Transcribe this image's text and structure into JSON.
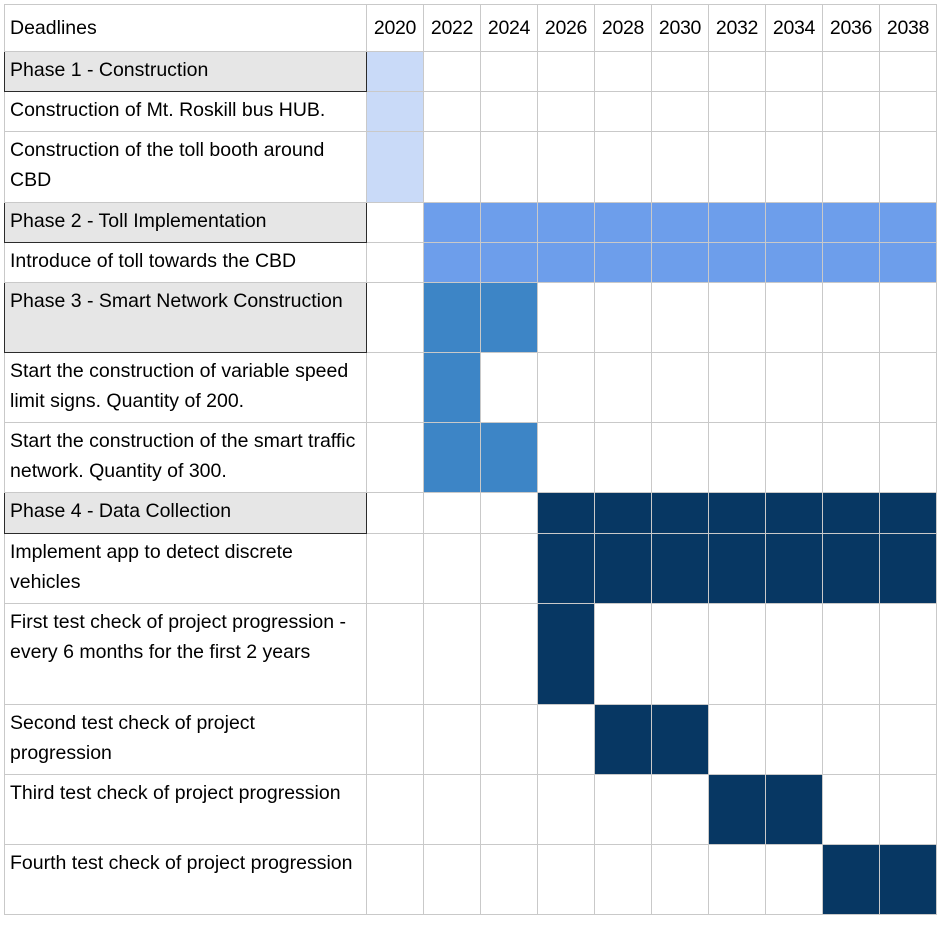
{
  "header_label": "Deadlines",
  "chart_data": {
    "type": "table",
    "title": "",
    "years": [
      "2020",
      "2022",
      "2024",
      "2026",
      "2028",
      "2030",
      "2032",
      "2034",
      "2036",
      "2038"
    ],
    "phase_colors": {
      "phase1": "#c9daf8",
      "phase2": "#6d9eeb",
      "phase3": "#3d85c6",
      "phase4": "#073763"
    },
    "rows": [
      {
        "label": "Phase 1 - Construction",
        "is_phase": true,
        "color_key": "phase1",
        "filled": [
          0
        ]
      },
      {
        "label": "Construction of Mt. Roskill bus HUB.",
        "is_phase": false,
        "color_key": "phase1",
        "filled": [
          0
        ]
      },
      {
        "label": "Construction of the toll booth around CBD",
        "is_phase": false,
        "color_key": "phase1",
        "filled": [
          0
        ]
      },
      {
        "label": "Phase 2 - Toll Implementation",
        "is_phase": true,
        "color_key": "phase2",
        "filled": [
          1,
          2,
          3,
          4,
          5,
          6,
          7,
          8,
          9
        ]
      },
      {
        "label": "Introduce of toll towards the CBD",
        "is_phase": false,
        "color_key": "phase2",
        "filled": [
          1,
          2,
          3,
          4,
          5,
          6,
          7,
          8,
          9
        ]
      },
      {
        "label": "Phase 3 - Smart Network Construction",
        "is_phase": true,
        "color_key": "phase3",
        "filled": [
          1,
          2
        ]
      },
      {
        "label": "Start the construction of variable speed limit signs. Quantity of 200.",
        "is_phase": false,
        "color_key": "phase3",
        "filled": [
          1
        ]
      },
      {
        "label": "Start the construction of the smart traffic network. Quantity of 300.",
        "is_phase": false,
        "color_key": "phase3",
        "filled": [
          1,
          2
        ]
      },
      {
        "label": "Phase 4 - Data Collection",
        "is_phase": true,
        "color_key": "phase4",
        "filled": [
          3,
          4,
          5,
          6,
          7,
          8,
          9
        ]
      },
      {
        "label": "Implement app to detect discrete vehicles",
        "is_phase": false,
        "color_key": "phase4",
        "filled": [
          3,
          4,
          5,
          6,
          7,
          8,
          9
        ]
      },
      {
        "label": "First test check of project progression - every 6 months for the first 2 years",
        "is_phase": false,
        "color_key": "phase4",
        "filled": [
          3
        ]
      },
      {
        "label": "Second test check of project progression",
        "is_phase": false,
        "color_key": "phase4",
        "filled": [
          4,
          5
        ]
      },
      {
        "label": "Third test check of project progression",
        "is_phase": false,
        "color_key": "phase4",
        "filled": [
          6,
          7
        ]
      },
      {
        "label": "Fourth test check of project progression",
        "is_phase": false,
        "color_key": "phase4",
        "filled": [
          8,
          9
        ]
      }
    ]
  }
}
